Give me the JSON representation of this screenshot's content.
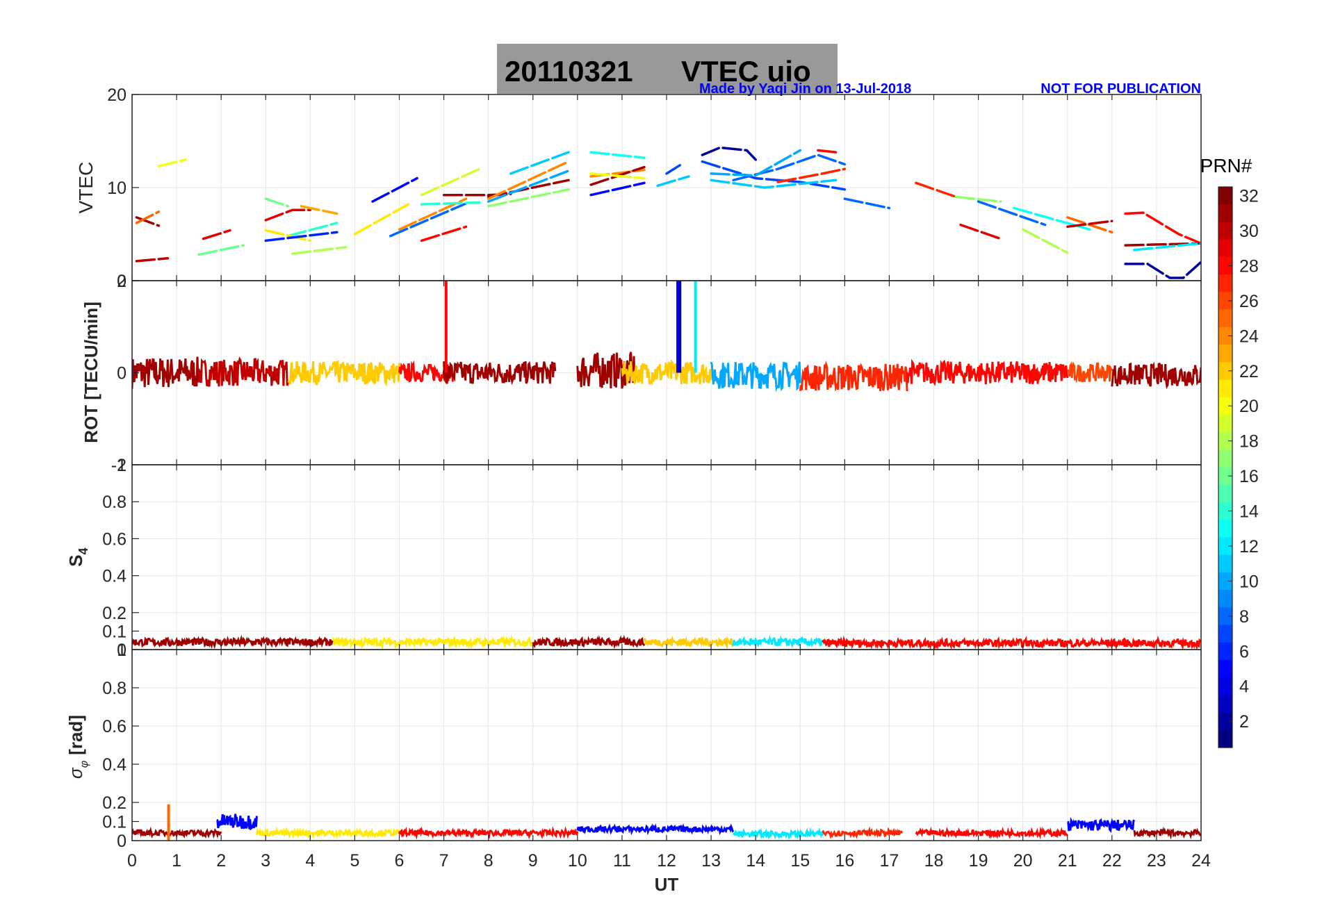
{
  "title": {
    "date": "20110321",
    "text": "VTEC  uio",
    "background": "#999999"
  },
  "credit": {
    "author": "Made by Yaqi Jin on 13-Jul-2018",
    "notice": "NOT FOR PUBLICATION",
    "color": "#0000ff"
  },
  "x_axis": {
    "label": "UT",
    "range": [
      0,
      24
    ],
    "ticks": [
      "0",
      "1",
      "2",
      "3",
      "4",
      "5",
      "6",
      "7",
      "8",
      "9",
      "10",
      "11",
      "12",
      "13",
      "14",
      "15",
      "16",
      "17",
      "18",
      "19",
      "20",
      "21",
      "22",
      "23",
      "24"
    ]
  },
  "colorbar": {
    "title": "PRN#",
    "range": [
      1,
      32
    ],
    "ticks": [
      "2",
      "4",
      "6",
      "8",
      "10",
      "12",
      "14",
      "16",
      "18",
      "20",
      "22",
      "24",
      "26",
      "28",
      "30",
      "32"
    ],
    "colormap": "jet"
  },
  "chart_data": [
    {
      "type": "line",
      "panel": "vtec",
      "ylabel": "VTEC",
      "ylim": [
        0,
        20
      ],
      "yticks": [
        "0",
        "10",
        "20"
      ],
      "grid": true,
      "series": [
        {
          "prn": 31,
          "x": [
            0.1,
            0.6
          ],
          "y": [
            6.8,
            5.9
          ]
        },
        {
          "prn": 25,
          "x": [
            0.1,
            0.6
          ],
          "y": [
            6.2,
            7.4
          ]
        },
        {
          "prn": 30,
          "x": [
            0.1,
            0.8
          ],
          "y": [
            2.1,
            2.4
          ]
        },
        {
          "prn": 20,
          "x": [
            0.6,
            1.2
          ],
          "y": [
            12.3,
            13.0
          ]
        },
        {
          "prn": 16,
          "x": [
            1.5,
            2.5
          ],
          "y": [
            2.8,
            3.8
          ]
        },
        {
          "prn": 29,
          "x": [
            1.6,
            2.2
          ],
          "y": [
            4.5,
            5.4
          ]
        },
        {
          "prn": 29,
          "x": [
            3.0,
            3.6,
            4.0
          ],
          "y": [
            6.5,
            7.6,
            7.6
          ]
        },
        {
          "prn": 16,
          "x": [
            3.0,
            3.5
          ],
          "y": [
            8.8,
            8.0
          ]
        },
        {
          "prn": 14,
          "x": [
            3.5,
            4.6
          ],
          "y": [
            4.8,
            6.2
          ]
        },
        {
          "prn": 21,
          "x": [
            3.0,
            4.0
          ],
          "y": [
            5.4,
            4.3
          ]
        },
        {
          "prn": 23,
          "x": [
            3.8,
            4.6
          ],
          "y": [
            8.0,
            7.2
          ]
        },
        {
          "prn": 18,
          "x": [
            3.6,
            4.8
          ],
          "y": [
            2.9,
            3.6
          ]
        },
        {
          "prn": 6,
          "x": [
            3.0,
            4.6
          ],
          "y": [
            4.3,
            5.2
          ]
        },
        {
          "prn": 5,
          "x": [
            5.4,
            6.4
          ],
          "y": [
            8.5,
            11.0
          ]
        },
        {
          "prn": 21,
          "x": [
            5.0,
            6.2
          ],
          "y": [
            5.0,
            8.2
          ]
        },
        {
          "prn": 8,
          "x": [
            5.8,
            7.5
          ],
          "y": [
            4.8,
            8.3
          ]
        },
        {
          "prn": 24,
          "x": [
            6.0,
            7.5
          ],
          "y": [
            5.5,
            8.8
          ]
        },
        {
          "prn": 28,
          "x": [
            6.5,
            7.5
          ],
          "y": [
            4.3,
            5.8
          ]
        },
        {
          "prn": 19,
          "x": [
            6.5,
            7.8
          ],
          "y": [
            9.2,
            12.0
          ]
        },
        {
          "prn": 14,
          "x": [
            6.5,
            7.8
          ],
          "y": [
            8.2,
            8.4
          ]
        },
        {
          "prn": 31,
          "x": [
            7.0,
            8.0,
            8.5
          ],
          "y": [
            9.2,
            9.2,
            9.3
          ]
        },
        {
          "prn": 17,
          "x": [
            8.0,
            9.8
          ],
          "y": [
            8.0,
            9.8
          ]
        },
        {
          "prn": 31,
          "x": [
            8.0,
            9.8
          ],
          "y": [
            9.0,
            10.8
          ]
        },
        {
          "prn": 24,
          "x": [
            8.0,
            9.8
          ],
          "y": [
            8.8,
            12.8
          ]
        },
        {
          "prn": 11,
          "x": [
            8.5,
            9.8
          ],
          "y": [
            11.5,
            13.8
          ]
        },
        {
          "prn": 10,
          "x": [
            8.0,
            9.8
          ],
          "y": [
            8.5,
            11.8
          ]
        },
        {
          "prn": 24,
          "x": [
            10.3,
            11.0,
            11.5
          ],
          "y": [
            11.2,
            11.6,
            11.9
          ]
        },
        {
          "prn": 31,
          "x": [
            10.3,
            11.5
          ],
          "y": [
            10.3,
            12.2
          ]
        },
        {
          "prn": 5,
          "x": [
            10.3,
            11.5
          ],
          "y": [
            9.2,
            10.5
          ]
        },
        {
          "prn": 13,
          "x": [
            10.3,
            11.5
          ],
          "y": [
            13.8,
            13.2
          ]
        },
        {
          "prn": 20,
          "x": [
            10.3,
            11.5
          ],
          "y": [
            11.5,
            11.0
          ]
        },
        {
          "prn": 7,
          "x": [
            12.0,
            12.3
          ],
          "y": [
            11.5,
            12.4
          ]
        },
        {
          "prn": 11,
          "x": [
            11.8,
            12.5
          ],
          "y": [
            10.2,
            11.2
          ]
        },
        {
          "prn": 2,
          "x": [
            12.8,
            13.2,
            13.8,
            14.0
          ],
          "y": [
            13.5,
            14.3,
            14.0,
            13.0
          ]
        },
        {
          "prn": 7,
          "x": [
            12.8,
            14.0,
            15.0,
            16.0
          ],
          "y": [
            12.8,
            11.0,
            10.6,
            9.8
          ]
        },
        {
          "prn": 8,
          "x": [
            13.5,
            14.5,
            15.4,
            16.0
          ],
          "y": [
            10.8,
            12.0,
            13.5,
            12.5
          ]
        },
        {
          "prn": 11,
          "x": [
            13.0,
            14.2,
            15.0,
            15.8
          ],
          "y": [
            10.8,
            10.0,
            10.4,
            10.8
          ]
        },
        {
          "prn": 27,
          "x": [
            14.5,
            15.5,
            16.0
          ],
          "y": [
            10.6,
            11.5,
            12.0
          ]
        },
        {
          "prn": 10,
          "x": [
            13.0,
            14.0,
            15.0
          ],
          "y": [
            11.5,
            11.3,
            14.0
          ]
        },
        {
          "prn": 28,
          "x": [
            15.4,
            15.8
          ],
          "y": [
            14.0,
            13.8
          ]
        },
        {
          "prn": 8,
          "x": [
            16.0,
            17.0
          ],
          "y": [
            8.8,
            7.8
          ]
        },
        {
          "prn": 27,
          "x": [
            17.6,
            18.5
          ],
          "y": [
            10.5,
            9.0
          ]
        },
        {
          "prn": 29,
          "x": [
            18.6,
            19.5
          ],
          "y": [
            6.0,
            4.5
          ]
        },
        {
          "prn": 17,
          "x": [
            18.5,
            19.5
          ],
          "y": [
            9.0,
            8.5
          ]
        },
        {
          "prn": 8,
          "x": [
            19.0,
            20.5
          ],
          "y": [
            8.5,
            6.0
          ]
        },
        {
          "prn": 13,
          "x": [
            19.8,
            21.5
          ],
          "y": [
            7.8,
            5.5
          ]
        },
        {
          "prn": 18,
          "x": [
            20.0,
            21.0
          ],
          "y": [
            5.5,
            3.0
          ]
        },
        {
          "prn": 25,
          "x": [
            21.0,
            22.0
          ],
          "y": [
            6.8,
            5.2
          ]
        },
        {
          "prn": 30,
          "x": [
            21.0,
            22.0
          ],
          "y": [
            5.8,
            6.4
          ]
        },
        {
          "prn": 28,
          "x": [
            22.3,
            22.7,
            23.5,
            24.0
          ],
          "y": [
            7.2,
            7.3,
            5.0,
            4.0
          ]
        },
        {
          "prn": 31,
          "x": [
            22.3,
            24.0
          ],
          "y": [
            3.8,
            4.0
          ]
        },
        {
          "prn": 2,
          "x": [
            22.3,
            22.8,
            23.3,
            23.6,
            24.0
          ],
          "y": [
            1.8,
            1.8,
            0.3,
            0.3,
            2.0
          ]
        },
        {
          "prn": 12,
          "x": [
            22.5,
            24.0
          ],
          "y": [
            3.3,
            4.0
          ]
        }
      ]
    },
    {
      "type": "line",
      "panel": "rot",
      "ylabel": "ROT [TECU/min]",
      "ylim": [
        -2,
        2
      ],
      "yticks": [
        "-2",
        "0",
        "2"
      ],
      "grid": true,
      "spikes": [
        {
          "prn": 28,
          "x": 7.05,
          "y": 2.0
        },
        {
          "prn": 5,
          "x": 12.25,
          "y": 2.0
        },
        {
          "prn": 3,
          "x": 12.3,
          "y": 2.0
        },
        {
          "prn": 12,
          "x": 12.65,
          "y": 2.0
        }
      ],
      "bands": [
        {
          "prn": 31,
          "x": [
            0.0,
            1.5
          ],
          "y": [
            0.0,
            0.0
          ],
          "amp": 0.35
        },
        {
          "prn": 30,
          "x": [
            1.5,
            3.5
          ],
          "y": [
            0.0,
            0.0
          ],
          "amp": 0.3
        },
        {
          "prn": 22,
          "x": [
            3.5,
            6.0
          ],
          "y": [
            0.0,
            0.0
          ],
          "amp": 0.25
        },
        {
          "prn": 28,
          "x": [
            6.0,
            7.2
          ],
          "y": [
            0.0,
            0.0
          ],
          "amp": 0.2
        },
        {
          "prn": 31,
          "x": [
            7.0,
            9.5
          ],
          "y": [
            0.0,
            0.0
          ],
          "amp": 0.25
        },
        {
          "prn": 31,
          "x": [
            10.0,
            11.3
          ],
          "y": [
            0.05,
            0.05
          ],
          "amp": 0.4
        },
        {
          "prn": 22,
          "x": [
            11.0,
            13.0
          ],
          "y": [
            0.0,
            0.0
          ],
          "amp": 0.25
        },
        {
          "prn": 10,
          "x": [
            13.0,
            15.0
          ],
          "y": [
            -0.05,
            -0.05
          ],
          "amp": 0.3
        },
        {
          "prn": 27,
          "x": [
            15.0,
            17.4
          ],
          "y": [
            -0.1,
            -0.1
          ],
          "amp": 0.3
        },
        {
          "prn": 28,
          "x": [
            17.4,
            21.0
          ],
          "y": [
            0.0,
            0.0
          ],
          "amp": 0.25
        },
        {
          "prn": 26,
          "x": [
            21.0,
            22.0
          ],
          "y": [
            0.0,
            0.0
          ],
          "amp": 0.2
        },
        {
          "prn": 31,
          "x": [
            22.0,
            24.0
          ],
          "y": [
            -0.05,
            -0.05
          ],
          "amp": 0.25
        }
      ]
    },
    {
      "type": "line",
      "panel": "s4",
      "ylabel": "S",
      "ylabel_sub": "4",
      "ylim": [
        0,
        1
      ],
      "yticks": [
        "0",
        "0.1",
        "0.2",
        "0.4",
        "0.6",
        "0.8",
        "1"
      ],
      "grid": true,
      "bands": [
        {
          "prn": 31,
          "x": [
            0.0,
            4.5
          ],
          "y": [
            0.04,
            0.04
          ],
          "amp": 0.02
        },
        {
          "prn": 21,
          "x": [
            4.5,
            9.0
          ],
          "y": [
            0.04,
            0.04
          ],
          "amp": 0.02
        },
        {
          "prn": 31,
          "x": [
            9.0,
            11.5
          ],
          "y": [
            0.04,
            0.04
          ],
          "amp": 0.02
        },
        {
          "prn": 22,
          "x": [
            11.5,
            13.5
          ],
          "y": [
            0.04,
            0.04
          ],
          "amp": 0.02
        },
        {
          "prn": 12,
          "x": [
            13.5,
            15.5
          ],
          "y": [
            0.04,
            0.04
          ],
          "amp": 0.02
        },
        {
          "prn": 28,
          "x": [
            15.5,
            24.0
          ],
          "y": [
            0.035,
            0.035
          ],
          "amp": 0.02
        }
      ]
    },
    {
      "type": "line",
      "panel": "sigma_phi",
      "ylabel": "[rad]",
      "ylabel_prefix": "σ",
      "ylabel_sub": "φ",
      "ylim": [
        0,
        1
      ],
      "yticks": [
        "0",
        "0.1",
        "0.2",
        "0.4",
        "0.6",
        "0.8",
        "1"
      ],
      "grid": true,
      "spikes": [
        {
          "prn": 25,
          "x": 0.82,
          "y": 0.19
        }
      ],
      "bands": [
        {
          "prn": 31,
          "x": [
            0.0,
            2.0
          ],
          "y": [
            0.04,
            0.04
          ],
          "amp": 0.015
        },
        {
          "prn": 5,
          "x": [
            1.9,
            2.8
          ],
          "y": [
            0.1,
            0.1
          ],
          "amp": 0.04
        },
        {
          "prn": 21,
          "x": [
            2.8,
            6.0
          ],
          "y": [
            0.04,
            0.04
          ],
          "amp": 0.015
        },
        {
          "prn": 28,
          "x": [
            6.0,
            10.0
          ],
          "y": [
            0.04,
            0.04
          ],
          "amp": 0.015
        },
        {
          "prn": 5,
          "x": [
            10.0,
            13.5
          ],
          "y": [
            0.06,
            0.06
          ],
          "amp": 0.015
        },
        {
          "prn": 12,
          "x": [
            13.5,
            15.5
          ],
          "y": [
            0.035,
            0.035
          ],
          "amp": 0.015
        },
        {
          "prn": 27,
          "x": [
            15.5,
            17.3
          ],
          "y": [
            0.04,
            0.04
          ],
          "amp": 0.015
        },
        {
          "prn": 28,
          "x": [
            17.6,
            21.0
          ],
          "y": [
            0.04,
            0.04
          ],
          "amp": 0.015
        },
        {
          "prn": 5,
          "x": [
            21.0,
            22.5
          ],
          "y": [
            0.08,
            0.08
          ],
          "amp": 0.03
        },
        {
          "prn": 31,
          "x": [
            22.5,
            24.0
          ],
          "y": [
            0.04,
            0.04
          ],
          "amp": 0.015
        }
      ]
    }
  ]
}
